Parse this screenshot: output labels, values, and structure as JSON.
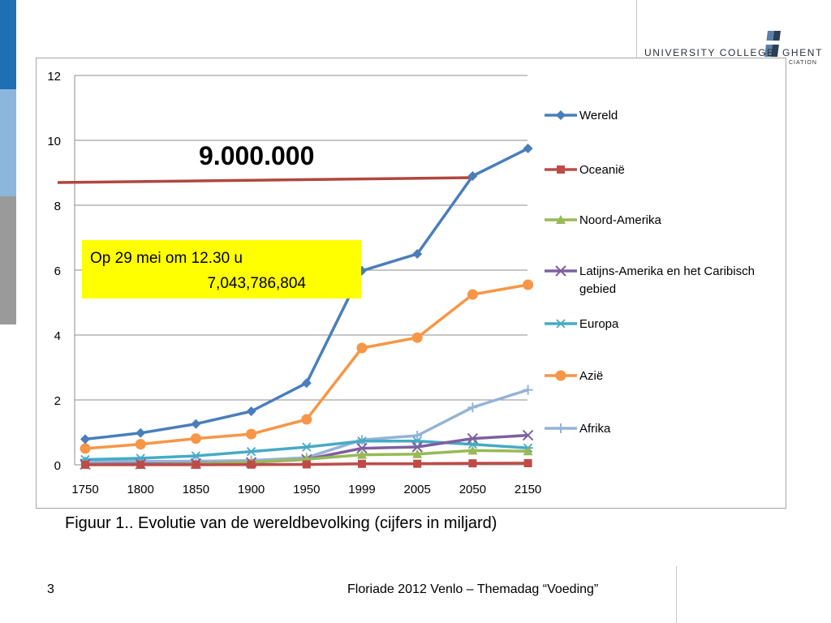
{
  "slide": {
    "logo_text_a": "UNIVERSITY COLLEGE",
    "logo_text_b": "GHENT",
    "logo_sub": "CIATION",
    "caption": "Figuur 1.. Evolutie van de wereldbevolking (cijfers in miljard)",
    "page_number": "3",
    "footer": "Floriade 2012 Venlo – Themadag “Voeding”"
  },
  "colors": {
    "side_bar_top": "#1f6fb4",
    "side_bar_mid": "#8db6dd",
    "side_bar_bottom": "#9a9a9a",
    "reference_line": "#b0473f",
    "callout_background": "#ffff00"
  },
  "chart_data": {
    "type": "line",
    "categories": [
      "1750",
      "1800",
      "1850",
      "1900",
      "1950",
      "1999",
      "2005",
      "2050",
      "2150"
    ],
    "ylim": [
      0,
      12
    ],
    "yticks": [
      0,
      2,
      4,
      6,
      8,
      10,
      12
    ],
    "grid": true,
    "legend_position": "right",
    "series": [
      {
        "name": "Wereld",
        "color": "#4a7ebb",
        "marker": "diamond",
        "values": [
          0.79,
          0.98,
          1.26,
          1.65,
          2.52,
          5.98,
          6.5,
          8.9,
          9.75
        ]
      },
      {
        "name": "Oceanië",
        "color": "#be4b48",
        "marker": "square",
        "values": [
          0.002,
          0.002,
          0.002,
          0.006,
          0.013,
          0.03,
          0.033,
          0.046,
          0.05
        ]
      },
      {
        "name": "Noord-Amerika",
        "color": "#98b954",
        "marker": "triangle",
        "values": [
          0.002,
          0.007,
          0.026,
          0.082,
          0.172,
          0.31,
          0.33,
          0.44,
          0.42
        ]
      },
      {
        "name": "Latijns-Amerika en het Caribisch gebied",
        "color": "#7d60a0",
        "marker": "x",
        "values": [
          0.016,
          0.024,
          0.038,
          0.074,
          0.167,
          0.51,
          0.55,
          0.81,
          0.91
        ]
      },
      {
        "name": "Europa",
        "color": "#46aac5",
        "marker": "star",
        "values": [
          0.163,
          0.203,
          0.276,
          0.408,
          0.547,
          0.73,
          0.73,
          0.63,
          0.52
        ]
      },
      {
        "name": "Azië",
        "color": "#f79646",
        "marker": "circle",
        "values": [
          0.502,
          0.635,
          0.809,
          0.947,
          1.4,
          3.6,
          3.92,
          5.25,
          5.55
        ]
      },
      {
        "name": "Afrika",
        "color": "#95b3d7",
        "marker": "plus",
        "values": [
          0.106,
          0.107,
          0.111,
          0.133,
          0.221,
          0.77,
          0.9,
          1.77,
          2.31
        ]
      }
    ],
    "annotations": {
      "reference_label": "9.000.000",
      "reference_value": 8.85,
      "callout_line1": "Op  29 mei om 12.30 u",
      "callout_line2": "7,043,786,804"
    }
  }
}
